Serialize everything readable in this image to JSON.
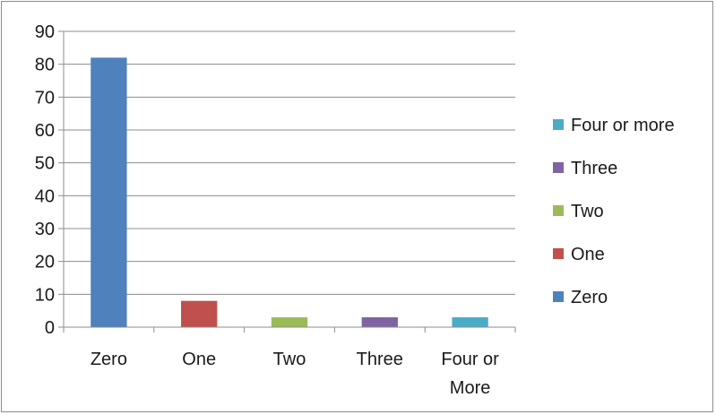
{
  "chart_data": {
    "type": "bar",
    "title": "",
    "xlabel": "",
    "ylabel": "",
    "categories": [
      "Zero",
      "One",
      "Two",
      "Three",
      "Four or More"
    ],
    "values": [
      82,
      8,
      3,
      3,
      3
    ],
    "colors": [
      "#4f81bd",
      "#c0504d",
      "#9bbb59",
      "#8064a2",
      "#4bacc6"
    ],
    "ylim": [
      0,
      90
    ],
    "yticks": [
      0,
      10,
      20,
      30,
      40,
      50,
      60,
      70,
      80,
      90
    ],
    "grid": true,
    "legend_position": "right",
    "legend": [
      {
        "label": "Four or more",
        "color": "#4bacc6"
      },
      {
        "label": "Three",
        "color": "#8064a2"
      },
      {
        "label": "Two",
        "color": "#9bbb59"
      },
      {
        "label": "One",
        "color": "#c0504d"
      },
      {
        "label": "Zero",
        "color": "#4f81bd"
      }
    ]
  }
}
